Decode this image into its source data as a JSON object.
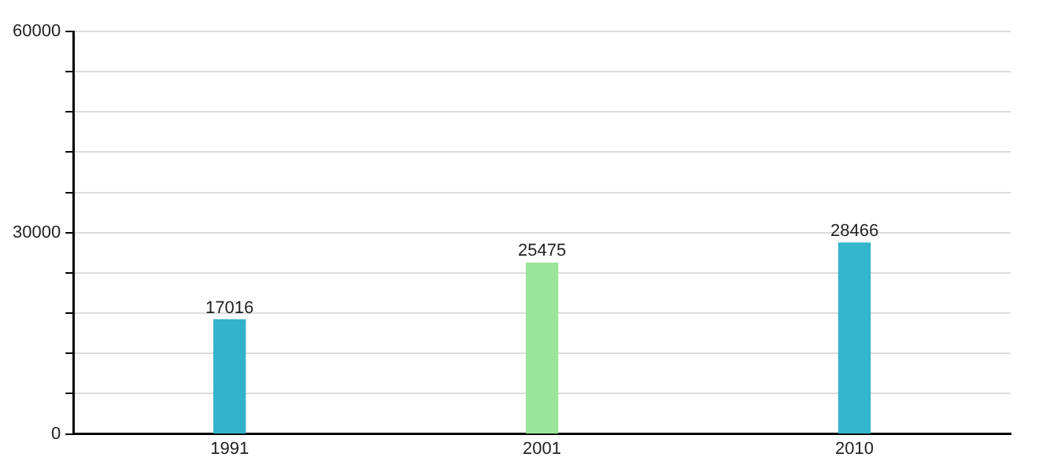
{
  "chart_data": {
    "type": "bar",
    "categories": [
      "1991",
      "2001",
      "2010"
    ],
    "values": [
      17016,
      25475,
      28466
    ],
    "colors": [
      "#33b2cc",
      "#9ae59a",
      "#33b5cc"
    ],
    "ylim": [
      0,
      60000
    ],
    "yticks": [
      0,
      {
        "value": 6000,
        "label": null
      },
      {
        "value": 12000,
        "label": null
      },
      {
        "value": 18000,
        "label": null
      },
      {
        "value": 24000,
        "label": null
      },
      30000,
      {
        "value": 36000,
        "label": null
      },
      {
        "value": 42000,
        "label": null
      },
      {
        "value": 48000,
        "label": null
      },
      {
        "value": 54000,
        "label": null
      },
      60000
    ],
    "grid": "y",
    "legend": false,
    "data_labels": true
  }
}
